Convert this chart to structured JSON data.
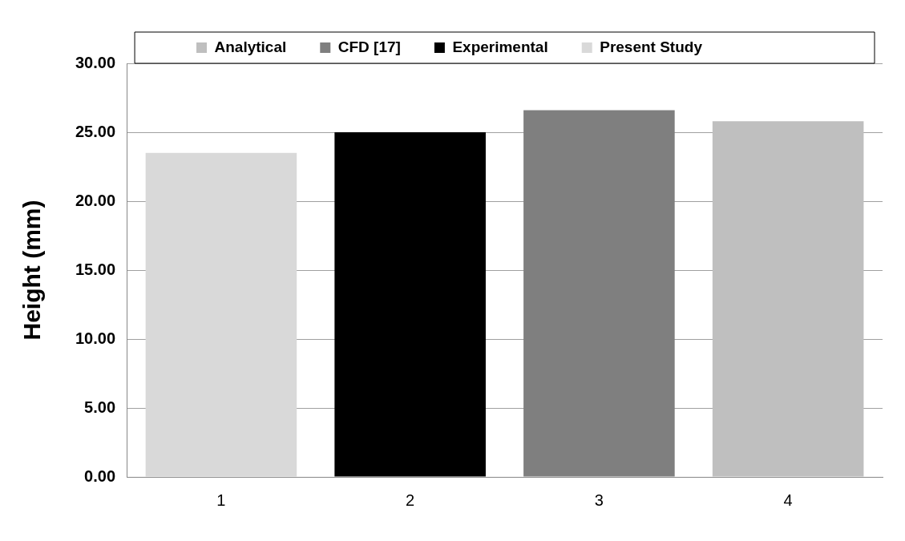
{
  "chart_data": {
    "type": "bar",
    "ylabel": "Height (mm)",
    "categories": [
      "1",
      "2",
      "3",
      "4"
    ],
    "series": [
      {
        "name": "Analytical",
        "color": "#bfbfbf",
        "values": [
          null,
          null,
          null,
          25.8
        ]
      },
      {
        "name": "CFD [17]",
        "color": "#7f7f7f",
        "values": [
          null,
          null,
          26.6,
          null
        ]
      },
      {
        "name": "Experimental",
        "color": "#000000",
        "values": [
          null,
          25.0,
          null,
          null
        ]
      },
      {
        "name": "Present Study",
        "color": "#d9d9d9",
        "values": [
          23.5,
          null,
          null,
          null
        ]
      }
    ],
    "ylim": [
      0,
      30
    ],
    "yticks": [
      {
        "value": 0,
        "label": "0.00"
      },
      {
        "value": 5,
        "label": "5.00"
      },
      {
        "value": 10,
        "label": "10.00"
      },
      {
        "value": 15,
        "label": "15.00"
      },
      {
        "value": 20,
        "label": "20.00"
      },
      {
        "value": 25,
        "label": "25.00"
      },
      {
        "value": 30,
        "label": "30.00"
      }
    ],
    "grid": "y",
    "legend": "top"
  }
}
